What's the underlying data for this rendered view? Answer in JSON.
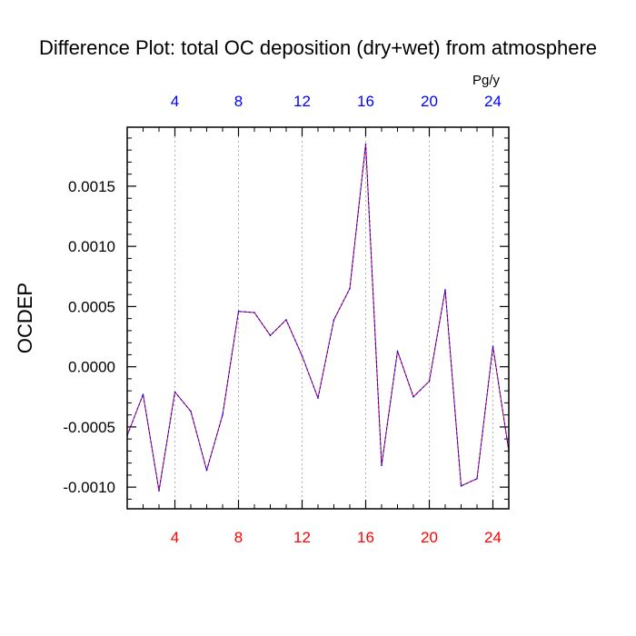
{
  "chart_data": {
    "type": "line",
    "title": "Difference Plot: total OC deposition (dry+wet) from atmosphere",
    "ylabel": "OCDEP",
    "top_axis_unit": "Pg/y",
    "x": [
      1,
      2,
      3,
      4,
      5,
      6,
      7,
      8,
      9,
      10,
      11,
      12,
      13,
      14,
      15,
      16,
      17,
      18,
      19,
      20,
      21,
      22,
      23,
      24,
      25
    ],
    "xlim": [
      1,
      25
    ],
    "ylim": [
      -0.00118,
      0.00199
    ],
    "x_ticks": [
      4,
      8,
      12,
      16,
      20,
      24
    ],
    "x_tick_labels": [
      "4",
      "8",
      "12",
      "16",
      "20",
      "24"
    ],
    "y_ticks": [
      -0.001,
      -0.0005,
      0.0,
      0.0005,
      0.001,
      0.0015
    ],
    "y_tick_labels": [
      "-0.0010",
      "-0.0005",
      "0.0000",
      "0.0005",
      "0.0010",
      "0.0015"
    ],
    "grid": "vertical dashed at major x ticks",
    "series": [
      {
        "color": "#0000ff",
        "overlay_color": "#ff0000",
        "values": [
          -0.00057,
          -0.00023,
          -0.00103,
          -0.00021,
          -0.00037,
          -0.00086,
          -0.0004,
          0.00046,
          0.00045,
          0.00026,
          0.00039,
          9e-05,
          -0.00026,
          0.00039,
          0.00065,
          0.00185,
          -0.00082,
          0.00013,
          -0.00025,
          -0.00012,
          0.00064,
          -0.00099,
          -0.00093,
          0.00017,
          -0.0007
        ]
      }
    ],
    "bottom_tick_color": "#ff0000",
    "top_tick_color": "#0000ff"
  }
}
